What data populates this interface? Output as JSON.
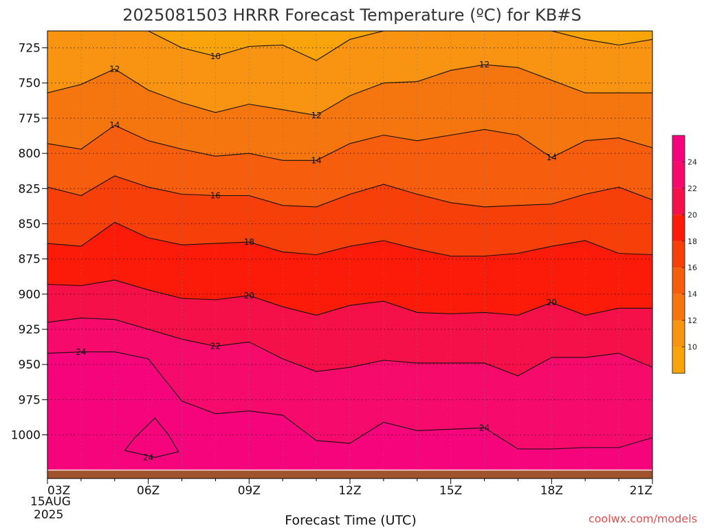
{
  "chart_data": {
    "type": "heatmap",
    "title": "2025081503 HRRR Forecast Temperature (ºC) for KB#S",
    "xlabel": "Forecast Time (UTC)",
    "ylabel": "",
    "x_ticks": [
      "03Z",
      "06Z",
      "09Z",
      "12Z",
      "15Z",
      "18Z",
      "21Z"
    ],
    "x_start_date_lines": [
      "15AUG",
      "2025"
    ],
    "x_hours": [
      3,
      21
    ],
    "y_ticks": [
      725,
      750,
      775,
      800,
      825,
      850,
      875,
      900,
      925,
      950,
      975,
      1000
    ],
    "y_range_hpa": [
      713,
      1031
    ],
    "y_inverted": true,
    "grid": true,
    "colorbar_ticks": [
      10,
      12,
      14,
      16,
      18,
      20,
      22,
      24
    ],
    "colorbar_colors": [
      "#f9a40a",
      "#f89412",
      "#f5760e",
      "#f65d0c",
      "#f73f0a",
      "#fc1b08",
      "#f6104a",
      "#f60a6b",
      "#f5047b"
    ],
    "ground_color": "#a0522d",
    "series_x_hours": [
      3,
      4,
      5,
      6,
      7,
      8,
      9,
      10,
      11,
      12,
      13,
      14,
      15,
      16,
      17,
      18,
      19,
      20,
      21
    ],
    "contours": [
      {
        "level": 10,
        "label": "10",
        "y_hpa": [
          713,
          713,
          713,
          713,
          725,
          731,
          724,
          723,
          734,
          719,
          713,
          713,
          713,
          713,
          713,
          713,
          719,
          723,
          719
        ]
      },
      {
        "level": 12,
        "label": "12",
        "y_hpa": [
          757,
          751,
          740,
          755,
          764,
          771,
          765,
          769,
          773,
          759,
          750,
          749,
          741,
          737,
          739,
          748,
          757,
          757,
          757
        ]
      },
      {
        "level": 14,
        "label": "14",
        "y_hpa": [
          793,
          797,
          780,
          791,
          797,
          802,
          800,
          805,
          805,
          793,
          787,
          791,
          787,
          783,
          787,
          803,
          791,
          789,
          796
        ]
      },
      {
        "level": 16,
        "label": "16",
        "y_hpa": [
          824,
          830,
          816,
          824,
          829,
          830,
          830,
          837,
          838,
          829,
          822,
          829,
          835,
          838,
          837,
          836,
          829,
          824,
          833
        ]
      },
      {
        "level": 18,
        "label": "18",
        "y_hpa": [
          864,
          866,
          849,
          860,
          865,
          864,
          863,
          870,
          872,
          866,
          862,
          868,
          873,
          873,
          871,
          866,
          862,
          871,
          872
        ]
      },
      {
        "level": 20,
        "label": "20",
        "y_hpa": [
          893,
          894,
          890,
          897,
          903,
          904,
          901,
          909,
          915,
          908,
          905,
          913,
          914,
          913,
          915,
          906,
          915,
          910,
          910
        ]
      },
      {
        "level": 22,
        "label": "22",
        "y_hpa": [
          920,
          917,
          918,
          925,
          932,
          937,
          934,
          946,
          955,
          952,
          947,
          949,
          949,
          949,
          958,
          945,
          945,
          942,
          952
        ]
      },
      {
        "level": 24,
        "label": "24",
        "y_hpa": [
          942,
          941,
          941,
          946,
          976,
          985,
          983,
          986,
          1004,
          1006,
          991,
          997,
          996,
          995,
          1010,
          1010,
          1009,
          1009,
          1002
        ]
      }
    ],
    "contour_24_closed_cell": {
      "level": 24,
      "label": "24",
      "x_hours": [
        6.2,
        5.6,
        5.3,
        6.2,
        6.9,
        6.6,
        6.2
      ],
      "y_hpa": [
        988,
        1002,
        1011,
        1016,
        1012,
        1000,
        988
      ]
    }
  },
  "credit": "coolwx.com/models"
}
